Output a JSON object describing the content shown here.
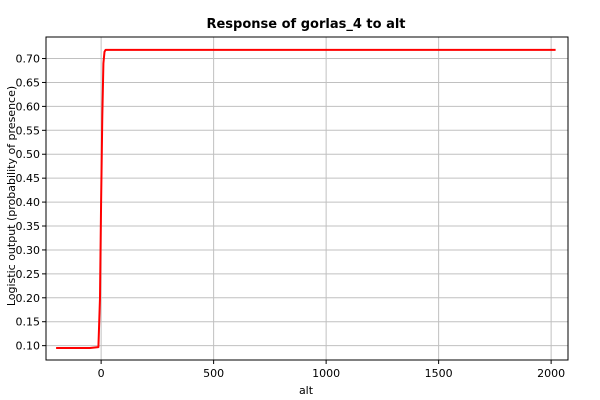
{
  "chart_data": {
    "type": "line",
    "title": "Response of gorlas_4 to alt",
    "xlabel": "alt",
    "ylabel": "Logistic output (probability of presence)",
    "xlim": [
      -245,
      2075
    ],
    "ylim": [
      0.07,
      0.745
    ],
    "xticks": [
      0,
      500,
      1000,
      1500,
      2000
    ],
    "xtick_labels": [
      "0",
      "500",
      "1000",
      "1500",
      "2000"
    ],
    "yticks": [
      0.1,
      0.15,
      0.2,
      0.25,
      0.3,
      0.35,
      0.4,
      0.45,
      0.5,
      0.55,
      0.6,
      0.65,
      0.7
    ],
    "ytick_labels": [
      "0.10",
      "0.15",
      "0.20",
      "0.25",
      "0.30",
      "0.35",
      "0.40",
      "0.45",
      "0.50",
      "0.55",
      "0.60",
      "0.65",
      "0.70"
    ],
    "grid": true,
    "series": [
      {
        "color": "#ff0000",
        "x": [
          -200,
          -150,
          -100,
          -50,
          -12,
          -5,
          0,
          5,
          10,
          15,
          20,
          50,
          500,
          1000,
          1500,
          2020
        ],
        "y": [
          0.095,
          0.095,
          0.095,
          0.095,
          0.097,
          0.2,
          0.4,
          0.58,
          0.69,
          0.714,
          0.718,
          0.718,
          0.718,
          0.718,
          0.718,
          0.718
        ]
      }
    ]
  }
}
